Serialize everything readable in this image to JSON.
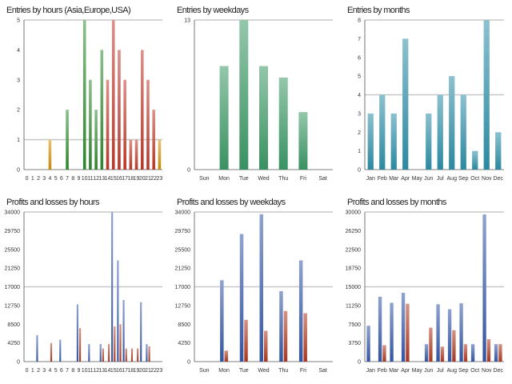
{
  "colors": {
    "green": "#2f8a2f",
    "red": "#c0392b",
    "orange": "#d4900a",
    "teal_green": "#3c9966",
    "teal_blue": "#2e8fa8",
    "blue": "#3558a8",
    "dark_red": "#b03a22",
    "grid": "#c8c8c8",
    "axis": "#555555"
  },
  "chart_data": [
    {
      "type": "bar",
      "title": "Entries by hours (Asia,Europe,USA)",
      "categories": [
        "0",
        "1",
        "2",
        "3",
        "4",
        "5",
        "6",
        "7",
        "8",
        "9",
        "10",
        "11",
        "12",
        "13",
        "14",
        "15",
        "16",
        "17",
        "18",
        "19",
        "20",
        "21",
        "22",
        "23"
      ],
      "values": [
        0,
        0,
        0,
        0,
        1,
        0,
        0,
        2,
        0,
        0,
        5,
        3,
        2,
        4,
        3,
        5,
        4,
        3,
        1,
        1,
        4,
        3,
        2,
        1
      ],
      "bar_colors": [
        "orange",
        "orange",
        "orange",
        "orange",
        "orange",
        "orange",
        "orange",
        "green",
        "green",
        "green",
        "green",
        "green",
        "green",
        "green",
        "red",
        "red",
        "red",
        "red",
        "red",
        "red",
        "red",
        "red",
        "red",
        "orange"
      ],
      "yticks": [
        0,
        1,
        2,
        3,
        4,
        5
      ],
      "ylim": [
        0,
        5
      ],
      "grid_lines": [
        1,
        5
      ]
    },
    {
      "type": "bar",
      "title": "Entries by weekdays",
      "categories": [
        "Sun",
        "Mon",
        "Tue",
        "Wed",
        "Thu",
        "Fri",
        "Sat"
      ],
      "values": [
        0,
        9,
        13,
        9,
        8,
        5,
        0
      ],
      "color": "teal_green",
      "yticks": [
        0,
        13
      ],
      "ylim": [
        0,
        13
      ],
      "grid_lines": [
        13
      ]
    },
    {
      "type": "bar",
      "title": "Entries by months",
      "categories": [
        "Jan",
        "Feb",
        "Mar",
        "Apr",
        "May",
        "Jun",
        "Jul",
        "Aug",
        "Sep",
        "Oct",
        "Nov",
        "Dec"
      ],
      "values": [
        3,
        4,
        3,
        7,
        0,
        3,
        4,
        5,
        4,
        1,
        8,
        2
      ],
      "color": "teal_blue",
      "yticks": [
        0,
        1,
        2,
        3,
        4,
        5,
        6,
        7,
        8
      ],
      "ylim": [
        0,
        8
      ],
      "grid_lines": [
        4,
        8
      ]
    },
    {
      "type": "bar",
      "title": "Profits and losses by hours",
      "categories": [
        "0",
        "1",
        "2",
        "3",
        "4",
        "5",
        "6",
        "7",
        "8",
        "9",
        "10",
        "11",
        "12",
        "13",
        "14",
        "15",
        "16",
        "17",
        "18",
        "19",
        "20",
        "21",
        "22",
        "23"
      ],
      "series": [
        {
          "name": "Profits",
          "color": "blue",
          "values": [
            0,
            0,
            6000,
            0,
            0,
            0,
            5000,
            0,
            0,
            13000,
            0,
            4000,
            0,
            4000,
            0,
            34000,
            23000,
            14000,
            0,
            0,
            13500,
            4000,
            0,
            0
          ]
        },
        {
          "name": "Losses",
          "color": "dark_red",
          "values": [
            0,
            0,
            0,
            0,
            4250,
            0,
            0,
            0,
            0,
            7600,
            0,
            0,
            0,
            3000,
            4000,
            8000,
            8500,
            3000,
            3000,
            3000,
            0,
            3500,
            0,
            0
          ]
        }
      ],
      "yticks": [
        0,
        4250,
        8500,
        12750,
        17000,
        21250,
        25500,
        29750,
        34000
      ],
      "ytick_labels": [
        "0",
        "4250",
        "8500",
        "12750",
        "17000",
        "21250",
        "25500",
        "29750",
        "34000"
      ],
      "ylim": [
        0,
        34000
      ],
      "grid_lines": [
        17000,
        34000
      ]
    },
    {
      "type": "bar",
      "title": "Profits and losses by weekdays",
      "categories": [
        "Sun",
        "Mon",
        "Tue",
        "Wed",
        "Thu",
        "Fri",
        "Sat"
      ],
      "series": [
        {
          "name": "Profits",
          "color": "blue",
          "values": [
            0,
            18500,
            29000,
            33500,
            16000,
            23000,
            0
          ]
        },
        {
          "name": "Losses",
          "color": "dark_red",
          "values": [
            0,
            2500,
            9500,
            7000,
            11500,
            11000,
            0
          ]
        }
      ],
      "yticks": [
        0,
        4250,
        8500,
        12750,
        17000,
        21250,
        25500,
        29750,
        34000
      ],
      "ytick_labels": [
        "0",
        "4250",
        "8500",
        "12750",
        "17000",
        "21250",
        "25500",
        "29750",
        "34000"
      ],
      "ylim": [
        0,
        34000
      ],
      "grid_lines": [
        17000,
        34000
      ]
    },
    {
      "type": "bar",
      "title": "Profits and losses by months",
      "categories": [
        "Jan",
        "Feb",
        "Mar",
        "Apr",
        "May",
        "Jun",
        "Jul",
        "Aug",
        "Sep",
        "Oct",
        "Nov",
        "Dec"
      ],
      "series": [
        {
          "name": "Profits",
          "color": "blue",
          "values": [
            7200,
            13000,
            11800,
            13800,
            0,
            3500,
            11500,
            10500,
            11700,
            3500,
            29500,
            3500
          ]
        },
        {
          "name": "Losses",
          "color": "dark_red",
          "values": [
            0,
            3300,
            0,
            11600,
            0,
            6800,
            3000,
            6300,
            3500,
            0,
            4500,
            3500
          ]
        }
      ],
      "yticks": [
        0,
        3750,
        7500,
        11250,
        15000,
        18750,
        22500,
        26250,
        30000
      ],
      "ytick_labels": [
        "0",
        "3750",
        "7500",
        "11250",
        "15000",
        "18750",
        "22500",
        "26250",
        "30000"
      ],
      "ylim": [
        0,
        30000
      ],
      "grid_lines": [
        15000,
        30000
      ]
    }
  ]
}
